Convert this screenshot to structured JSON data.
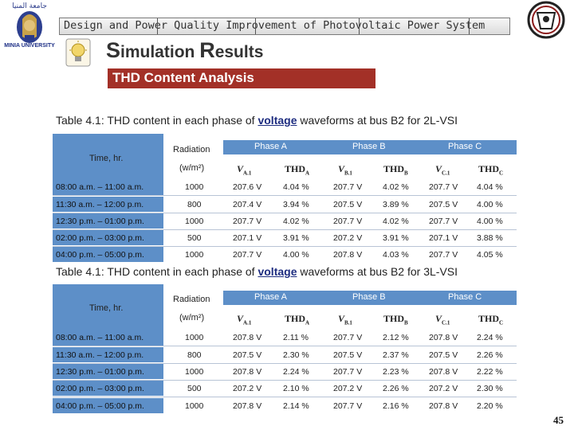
{
  "header": {
    "banner_title": "Design and Power Quality Improvement of Photovoltaic Power System",
    "university_label": "MINIA UNIVERSITY",
    "section_title_initial1": "S",
    "section_title_rest1": "imulation ",
    "section_title_initial2": "R",
    "section_title_rest2": "esults",
    "sub_banner": "THD Content Analysis"
  },
  "colors": {
    "accent": "#a33027",
    "table_header": "#5d8fc8",
    "link": "#1e2d80"
  },
  "tables": [
    {
      "caption_before": "Table 4.1: THD content in each phase of ",
      "caption_keyword": "voltage",
      "caption_after": " waveforms at bus B2 for 2L-VSI",
      "header": {
        "time": "Time, hr.",
        "radiation": "Radiation",
        "radiation_unit": "(w/m²)",
        "phase_a": "Phase A",
        "phase_b": "Phase B",
        "phase_c": "Phase C",
        "va": "V",
        "va_sub": "A.1",
        "thda": "THD",
        "thda_sub": "A",
        "vb": "V",
        "vb_sub": "B.1",
        "thdb": "THD",
        "thdb_sub": "B",
        "vc": "V",
        "vc_sub": "C.1",
        "thdc": "THD",
        "thdc_sub": "C"
      },
      "rows": [
        {
          "time": "08:00 a.m. – 11:00 a.m.",
          "radiation": "1000",
          "va": "207.6 V",
          "thda": "4.04 %",
          "vb": "207.7 V",
          "thdb": "4.02 %",
          "vc": "207.7 V",
          "thdc": "4.04 %"
        },
        {
          "time": "11:30 a.m. – 12:00 p.m.",
          "radiation": "800",
          "va": "207.4 V",
          "thda": "3.94 %",
          "vb": "207.5 V",
          "thdb": "3.89 %",
          "vc": "207.5 V",
          "thdc": "4.00 %"
        },
        {
          "time": "12:30 p.m. – 01:00 p.m.",
          "radiation": "1000",
          "va": "207.7 V",
          "thda": "4.02 %",
          "vb": "207.7 V",
          "thdb": "4.02 %",
          "vc": "207.7 V",
          "thdc": "4.00 %"
        },
        {
          "time": "02:00 p.m. – 03:00 p.m.",
          "radiation": "500",
          "va": "207.1 V",
          "thda": "3.91 %",
          "vb": "207.2 V",
          "thdb": "3.91 %",
          "vc": "207.1 V",
          "thdc": "3.88 %"
        },
        {
          "time": "04:00 p.m. – 05:00 p.m.",
          "radiation": "1000",
          "va": "207.7 V",
          "thda": "4.00 %",
          "vb": "207.8 V",
          "thdb": "4.03 %",
          "vc": "207.7 V",
          "thdc": "4.05 %"
        }
      ]
    },
    {
      "caption_before": "Table 4.1: THD content in each phase of ",
      "caption_keyword": "voltage",
      "caption_after": " waveforms at bus B2 for 3L-VSI",
      "header": {
        "time": "Time, hr.",
        "radiation": "Radiation",
        "radiation_unit": "(w/m²)",
        "phase_a": "Phase A",
        "phase_b": "Phase B",
        "phase_c": "Phase C",
        "va": "V",
        "va_sub": "A.1",
        "thda": "THD",
        "thda_sub": "A",
        "vb": "V",
        "vb_sub": "B.1",
        "thdb": "THD",
        "thdb_sub": "B",
        "vc": "V",
        "vc_sub": "C.1",
        "thdc": "THD",
        "thdc_sub": "C"
      },
      "rows": [
        {
          "time": "08:00 a.m. – 11:00 a.m.",
          "radiation": "1000",
          "va": "207.8 V",
          "thda": "2.11 %",
          "vb": "207.7 V",
          "thdb": "2.12 %",
          "vc": "207.8 V",
          "thdc": "2.24 %"
        },
        {
          "time": "11:30 a.m. – 12:00 p.m.",
          "radiation": "800",
          "va": "207.5 V",
          "thda": "2.30 %",
          "vb": "207.5 V",
          "thdb": "2.37 %",
          "vc": "207.5 V",
          "thdc": "2.26 %"
        },
        {
          "time": "12:30 p.m. – 01:00 p.m.",
          "radiation": "1000",
          "va": "207.8 V",
          "thda": "2.24 %",
          "vb": "207.7 V",
          "thdb": "2.23 %",
          "vc": "207.8 V",
          "thdc": "2.22 %"
        },
        {
          "time": "02:00 p.m. – 03:00 p.m.",
          "radiation": "500",
          "va": "207.2 V",
          "thda": "2.10 %",
          "vb": "207.2 V",
          "thdb": "2.26 %",
          "vc": "207.2 V",
          "thdc": "2.30 %"
        },
        {
          "time": "04:00 p.m. – 05:00 p.m.",
          "radiation": "1000",
          "va": "207.8 V",
          "thda": "2.14 %",
          "vb": "207.7 V",
          "thdb": "2.16 %",
          "vc": "207.8 V",
          "thdc": "2.20 %"
        }
      ]
    }
  ],
  "footer": {
    "page_number": "45"
  }
}
